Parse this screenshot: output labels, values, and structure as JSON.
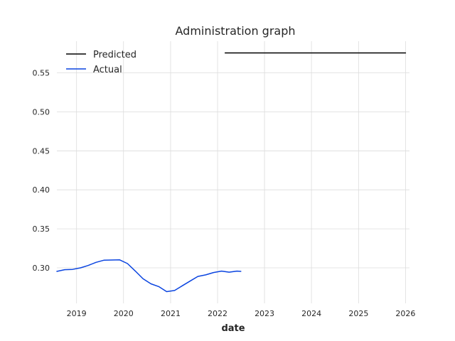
{
  "chart_data": {
    "type": "line",
    "title": "Administration graph",
    "xlabel": "date",
    "ylabel": "",
    "x_ticks": [
      "2019",
      "2020",
      "2021",
      "2022",
      "2023",
      "2024",
      "2025",
      "2026"
    ],
    "y_ticks": [
      "0.30",
      "0.35",
      "0.40",
      "0.45",
      "0.50",
      "0.55"
    ],
    "xlim": [
      "2018-08-01",
      "2026-02-01"
    ],
    "ylim": [
      0.2545,
      0.5905
    ],
    "grid": true,
    "legend_position": "top-left",
    "series": [
      {
        "name": "Predicted",
        "color": "#000000",
        "points": [
          [
            "2022-03-01",
            0.5755
          ],
          [
            "2026-01-01",
            0.5755
          ]
        ]
      },
      {
        "name": "Actual",
        "color": "#0a44e0",
        "points": [
          [
            "2018-08-01",
            0.2955
          ],
          [
            "2018-10-01",
            0.2977
          ],
          [
            "2018-12-01",
            0.298
          ],
          [
            "2019-02-01",
            0.3
          ],
          [
            "2019-04-01",
            0.303
          ],
          [
            "2019-06-01",
            0.307
          ],
          [
            "2019-08-01",
            0.3098
          ],
          [
            "2019-10-01",
            0.31
          ],
          [
            "2019-12-01",
            0.3103
          ],
          [
            "2020-02-01",
            0.3055
          ],
          [
            "2020-04-01",
            0.296
          ],
          [
            "2020-06-01",
            0.286
          ],
          [
            "2020-08-01",
            0.2795
          ],
          [
            "2020-10-01",
            0.276
          ],
          [
            "2020-12-01",
            0.2695
          ],
          [
            "2021-02-01",
            0.271
          ],
          [
            "2021-04-01",
            0.277
          ],
          [
            "2021-06-01",
            0.283
          ],
          [
            "2021-08-01",
            0.289
          ],
          [
            "2021-10-01",
            0.291
          ],
          [
            "2021-12-01",
            0.294
          ],
          [
            "2022-02-01",
            0.2958
          ],
          [
            "2022-04-01",
            0.2945
          ],
          [
            "2022-06-01",
            0.2958
          ],
          [
            "2022-07-01",
            0.2955
          ]
        ]
      }
    ]
  }
}
